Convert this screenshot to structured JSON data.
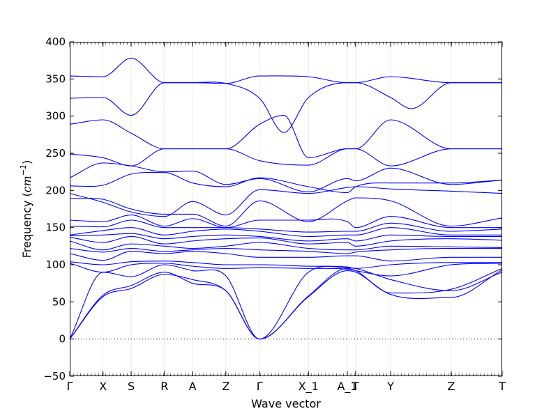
{
  "chart_data": {
    "type": "line",
    "title": "",
    "xlabel": "Wave vector",
    "ylabel": "Frequency (cm⁻¹)",
    "ylabel_parts": {
      "main": "Frequency (",
      "var": "cm",
      "sup": "−1",
      "close": ")"
    },
    "ylim": [
      -50,
      400
    ],
    "yticks": [
      -50,
      0,
      50,
      100,
      150,
      200,
      250,
      300,
      350,
      400
    ],
    "ytick_labels": [
      "−50",
      "0",
      "50",
      "100",
      "150",
      "200",
      "250",
      "300",
      "350",
      "400"
    ],
    "xlim": [
      0,
      1
    ],
    "xticks": [
      {
        "label": "Γ",
        "pos": 0.0
      },
      {
        "label": "X",
        "pos": 0.077
      },
      {
        "label": "S",
        "pos": 0.142
      },
      {
        "label": "R",
        "pos": 0.219
      },
      {
        "label": "A",
        "pos": 0.284
      },
      {
        "label": "Z",
        "pos": 0.361
      },
      {
        "label": "Γ",
        "pos": 0.439
      },
      {
        "label": "X_1",
        "pos": 0.552
      },
      {
        "label": "A_1",
        "pos": 0.642
      },
      {
        "label": "T",
        "pos": 0.661
      },
      {
        "label": "Y",
        "pos": 0.742
      },
      {
        "label": "Z",
        "pos": 0.882
      },
      {
        "label": "T",
        "pos": 1.0
      }
    ],
    "zero_line": true,
    "line_color": "#0000ff",
    "series": [
      {
        "x": [
          0.0,
          0.077,
          0.142,
          0.219,
          0.284,
          0.361,
          0.439,
          0.552,
          0.642,
          0.661,
          0.742,
          0.882,
          1.0
        ],
        "values": [
          354,
          353,
          378,
          345,
          345,
          344,
          354,
          353,
          345,
          345,
          353,
          345,
          345
        ]
      },
      {
        "x": [
          0.0,
          0.077,
          0.142,
          0.219,
          0.284,
          0.361,
          0.439,
          0.495,
          0.552,
          0.642,
          0.661,
          0.742,
          0.79,
          0.882,
          1.0
        ],
        "values": [
          324,
          325,
          301,
          345,
          345,
          344,
          324,
          278,
          325,
          345,
          345,
          325,
          310,
          345,
          345
        ]
      },
      {
        "x": [
          0.0,
          0.077,
          0.142,
          0.219,
          0.284,
          0.361,
          0.439,
          0.495,
          0.552,
          0.642,
          0.661,
          0.742,
          0.882,
          1.0
        ],
        "values": [
          289,
          295,
          277,
          256,
          256,
          256,
          289,
          301,
          244,
          256,
          256,
          295,
          256,
          256
        ]
      },
      {
        "x": [
          0.0,
          0.077,
          0.142,
          0.219,
          0.284,
          0.361,
          0.439,
          0.552,
          0.642,
          0.661,
          0.742,
          0.882,
          1.0
        ],
        "values": [
          249,
          244,
          233,
          256,
          256,
          256,
          240,
          234,
          256,
          256,
          233,
          256,
          256
        ]
      },
      {
        "x": [
          0.0,
          0.077,
          0.142,
          0.219,
          0.284,
          0.361,
          0.439,
          0.552,
          0.642,
          0.661,
          0.742,
          0.882,
          1.0
        ],
        "values": [
          217,
          237,
          233,
          225,
          226,
          208,
          216,
          198,
          216,
          213,
          230,
          208,
          214
        ]
      },
      {
        "x": [
          0.0,
          0.077,
          0.142,
          0.219,
          0.284,
          0.361,
          0.439,
          0.552,
          0.642,
          0.661,
          0.742,
          0.882,
          1.0
        ],
        "values": [
          206,
          207,
          222,
          224,
          210,
          205,
          217,
          205,
          197,
          205,
          210,
          210,
          214
        ]
      },
      {
        "x": [
          0.0,
          0.077,
          0.142,
          0.219,
          0.284,
          0.361,
          0.439,
          0.552,
          0.642,
          0.661,
          0.742,
          0.882,
          1.0
        ],
        "values": [
          196,
          184,
          171,
          165,
          185,
          167,
          201,
          196,
          204,
          205,
          202,
          199,
          196
        ]
      },
      {
        "x": [
          0.0,
          0.077,
          0.142,
          0.219,
          0.284,
          0.361,
          0.439,
          0.552,
          0.642,
          0.661,
          0.742,
          0.882,
          1.0
        ],
        "values": [
          189,
          188,
          175,
          168,
          168,
          152,
          186,
          158,
          186,
          190,
          186,
          152,
          163
        ]
      },
      {
        "x": [
          0.0,
          0.077,
          0.142,
          0.219,
          0.284,
          0.361,
          0.439,
          0.552,
          0.642,
          0.661,
          0.742,
          0.882,
          1.0
        ],
        "values": [
          160,
          158,
          167,
          152,
          162,
          150,
          160,
          160,
          158,
          150,
          165,
          150,
          150
        ]
      },
      {
        "x": [
          0.0,
          0.077,
          0.142,
          0.219,
          0.284,
          0.361,
          0.439,
          0.552,
          0.642,
          0.661,
          0.742,
          0.882,
          1.0
        ],
        "values": [
          152,
          151,
          160,
          150,
          150,
          150,
          148,
          144,
          145,
          145,
          156,
          145,
          148
        ]
      },
      {
        "x": [
          0.0,
          0.077,
          0.142,
          0.219,
          0.284,
          0.361,
          0.439,
          0.552,
          0.642,
          0.661,
          0.742,
          0.882,
          1.0
        ],
        "values": [
          140,
          146,
          150,
          140,
          145,
          148,
          145,
          138,
          140,
          140,
          150,
          140,
          140
        ]
      },
      {
        "x": [
          0.0,
          0.077,
          0.142,
          0.219,
          0.284,
          0.361,
          0.439,
          0.552,
          0.642,
          0.661,
          0.742,
          0.882,
          1.0
        ],
        "values": [
          139,
          140,
          142,
          135,
          138,
          140,
          138,
          132,
          135,
          132,
          140,
          138,
          138
        ]
      },
      {
        "x": [
          0.0,
          0.077,
          0.142,
          0.219,
          0.284,
          0.361,
          0.439,
          0.552,
          0.642,
          0.661,
          0.742,
          0.882,
          1.0
        ],
        "values": [
          137,
          130,
          138,
          128,
          132,
          135,
          136,
          128,
          130,
          125,
          132,
          135,
          133
        ]
      },
      {
        "x": [
          0.0,
          0.077,
          0.142,
          0.219,
          0.284,
          0.361,
          0.439,
          0.552,
          0.642,
          0.661,
          0.742,
          0.882,
          1.0
        ],
        "values": [
          132,
          120,
          128,
          125,
          122,
          125,
          130,
          122,
          120,
          120,
          125,
          124,
          123
        ]
      },
      {
        "x": [
          0.0,
          0.077,
          0.142,
          0.219,
          0.284,
          0.361,
          0.439,
          0.552,
          0.642,
          0.661,
          0.742,
          0.882,
          1.0
        ],
        "values": [
          122,
          117,
          122,
          118,
          120,
          122,
          120,
          118,
          115,
          117,
          120,
          122,
          122
        ]
      },
      {
        "x": [
          0.0,
          0.077,
          0.142,
          0.219,
          0.284,
          0.361,
          0.439,
          0.552,
          0.642,
          0.661,
          0.742,
          0.882,
          1.0
        ],
        "values": [
          115,
          106,
          118,
          115,
          118,
          115,
          110,
          110,
          112,
          112,
          105,
          110,
          110
        ]
      },
      {
        "x": [
          0.0,
          0.077,
          0.142,
          0.219,
          0.284,
          0.361,
          0.439,
          0.552,
          0.642,
          0.661,
          0.742,
          0.882,
          1.0
        ],
        "values": [
          104,
          100,
          104,
          105,
          103,
          100,
          100,
          98,
          97,
          95,
          100,
          103,
          103
        ]
      },
      {
        "x": [
          0.0,
          0.077,
          0.142,
          0.219,
          0.284,
          0.361,
          0.439,
          0.552,
          0.642,
          0.661,
          0.742,
          0.882,
          1.0
        ],
        "values": [
          102,
          90,
          100,
          102,
          98,
          95,
          96,
          95,
          94,
          92,
          85,
          100,
          102
        ]
      },
      {
        "x": [
          0.0,
          0.077,
          0.142,
          0.219,
          0.284,
          0.361,
          0.439,
          0.552,
          0.642,
          0.661,
          0.742,
          0.882,
          1.0
        ],
        "values": [
          0,
          59,
          72,
          90,
          75,
          65,
          0,
          58,
          95,
          92,
          62,
          67,
          95
        ]
      },
      {
        "x": [
          0.0,
          0.077,
          0.142,
          0.219,
          0.284,
          0.361,
          0.439,
          0.552,
          0.642,
          0.661,
          0.742,
          0.882,
          1.0
        ],
        "values": [
          0,
          57,
          68,
          87,
          80,
          65,
          0,
          57,
          92,
          90,
          60,
          56,
          93
        ]
      },
      {
        "x": [
          0.0,
          0.077,
          0.142,
          0.219,
          0.284,
          0.361,
          0.439,
          0.552,
          0.642,
          0.661,
          0.742,
          0.882,
          1.0
        ],
        "values": [
          0,
          90,
          84,
          100,
          92,
          85,
          0,
          90,
          96,
          95,
          80,
          65,
          90
        ]
      }
    ]
  }
}
